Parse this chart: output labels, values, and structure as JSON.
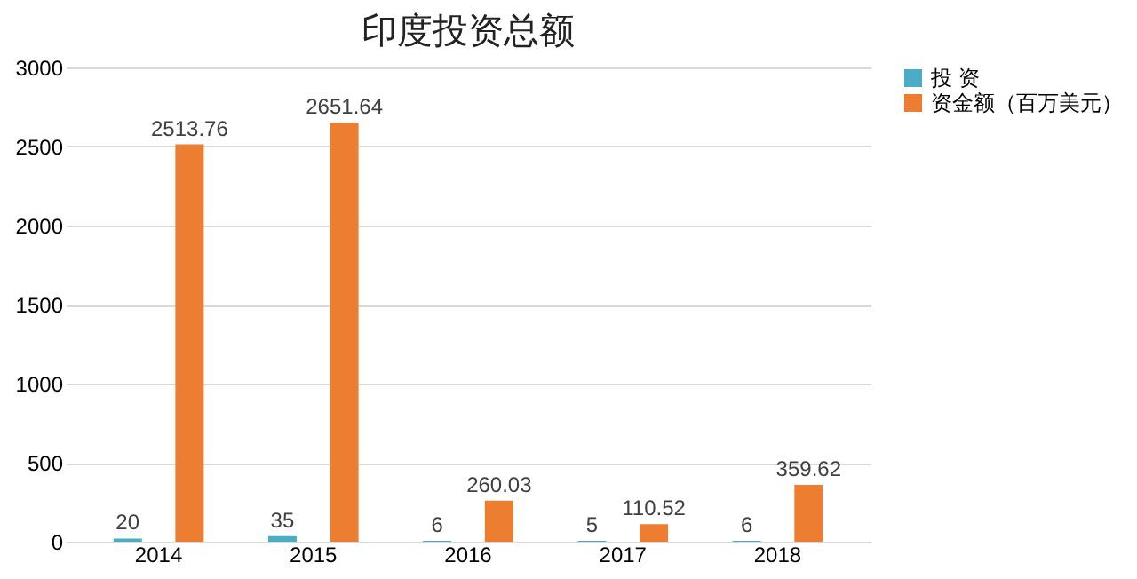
{
  "chart_data": {
    "type": "bar",
    "title": "印度投资总额",
    "categories": [
      "2014",
      "2015",
      "2016",
      "2017",
      "2018"
    ],
    "series": [
      {
        "name": "投 资",
        "color": "#4bacc6",
        "values": [
          20,
          35,
          6,
          5,
          6
        ]
      },
      {
        "name": "资金额（百万美元）",
        "color": "#ed7d31",
        "values": [
          2513.76,
          2651.64,
          260.03,
          110.52,
          359.62
        ]
      }
    ],
    "ylim": [
      0,
      3000
    ],
    "yticks": [
      0,
      500,
      1000,
      1500,
      2000,
      2500,
      3000
    ],
    "grid": "y",
    "legend": "right",
    "data_labels": true
  }
}
